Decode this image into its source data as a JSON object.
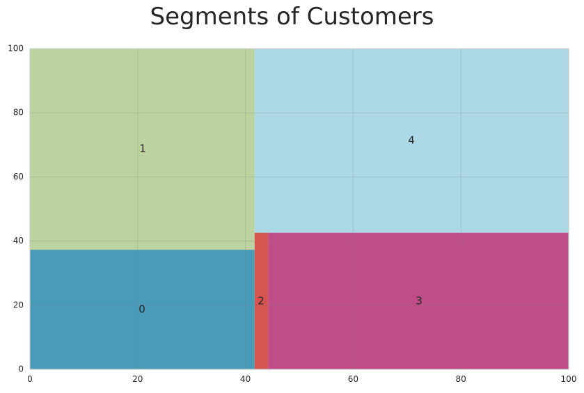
{
  "chart_data": {
    "type": "treemap",
    "title": "Segments of Customers",
    "xlim": [
      0,
      100
    ],
    "ylim": [
      0,
      100
    ],
    "xticks": [
      "0",
      "20",
      "40",
      "60",
      "80",
      "100"
    ],
    "yticks": [
      "0",
      "20",
      "40",
      "60",
      "80",
      "100"
    ],
    "grid": true,
    "segments": [
      {
        "label": "0",
        "x0": 0,
        "x1": 41.7,
        "y0": 0,
        "y1": 37.3,
        "color": "#4a9aba"
      },
      {
        "label": "1",
        "x0": 0,
        "x1": 41.7,
        "y0": 37.3,
        "y1": 100,
        "color": "#bcd39f"
      },
      {
        "label": "2",
        "x0": 41.7,
        "x1": 44.2,
        "y0": 0,
        "y1": 42.6,
        "color": "#d6554e"
      },
      {
        "label": "3",
        "x0": 44.2,
        "x1": 100,
        "y0": 0,
        "y1": 42.6,
        "color": "#bf4e88"
      },
      {
        "label": "4",
        "x0": 41.7,
        "x1": 100,
        "y0": 42.6,
        "y1": 100,
        "color": "#acd9e5"
      }
    ]
  }
}
